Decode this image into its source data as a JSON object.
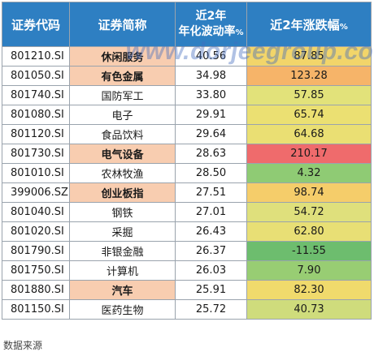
{
  "table": {
    "headers": {
      "code": "证券代码",
      "name": "证券简称",
      "vol_line1": "近2年",
      "vol_line2": "年化波动率",
      "vol_unit": "%",
      "chg": "近2年涨跌幅",
      "chg_unit": "%"
    },
    "rows": [
      {
        "code": "801210.SI",
        "name": "休闲服务",
        "vol": "40.56",
        "chg": "87.85",
        "highlight": true,
        "color": "#f2d56a"
      },
      {
        "code": "801050.SI",
        "name": "有色金属",
        "vol": "34.98",
        "chg": "123.28",
        "highlight": true,
        "color": "#f6b469"
      },
      {
        "code": "801740.SI",
        "name": "国防军工",
        "vol": "33.80",
        "chg": "57.85",
        "highlight": false,
        "color": "#e2e27a"
      },
      {
        "code": "801080.SI",
        "name": "电子",
        "vol": "29.91",
        "chg": "65.74",
        "highlight": false,
        "color": "#ebe072"
      },
      {
        "code": "801120.SI",
        "name": "食品饮料",
        "vol": "29.64",
        "chg": "64.68",
        "highlight": false,
        "color": "#eadf73"
      },
      {
        "code": "801730.SI",
        "name": "电气设备",
        "vol": "28.63",
        "chg": "210.17",
        "highlight": true,
        "color": "#ef6b6c"
      },
      {
        "code": "801010.SI",
        "name": "农林牧渔",
        "vol": "28.50",
        "chg": "4.32",
        "highlight": false,
        "color": "#8fcb74"
      },
      {
        "code": "399006.SZ",
        "name": "创业板指",
        "vol": "27.51",
        "chg": "98.74",
        "highlight": true,
        "color": "#f5cd6a"
      },
      {
        "code": "801040.SI",
        "name": "钢铁",
        "vol": "27.01",
        "chg": "54.72",
        "highlight": false,
        "color": "#dfe07c"
      },
      {
        "code": "801020.SI",
        "name": "采掘",
        "vol": "26.43",
        "chg": "62.80",
        "highlight": false,
        "color": "#e8df75"
      },
      {
        "code": "801790.SI",
        "name": "非银金融",
        "vol": "26.37",
        "chg": "-11.55",
        "highlight": false,
        "color": "#6dbd6e"
      },
      {
        "code": "801750.SI",
        "name": "计算机",
        "vol": "26.03",
        "chg": "7.90",
        "highlight": false,
        "color": "#98cd73"
      },
      {
        "code": "801880.SI",
        "name": "汽车",
        "vol": "25.91",
        "chg": "82.30",
        "highlight": true,
        "color": "#f0da6c"
      },
      {
        "code": "801150.SI",
        "name": "医药生物",
        "vol": "25.72",
        "chg": "40.73",
        "highlight": false,
        "color": "#cfdc7c"
      }
    ]
  },
  "watermark": "www.dorjeegroup.com",
  "footer": "数据来源"
}
